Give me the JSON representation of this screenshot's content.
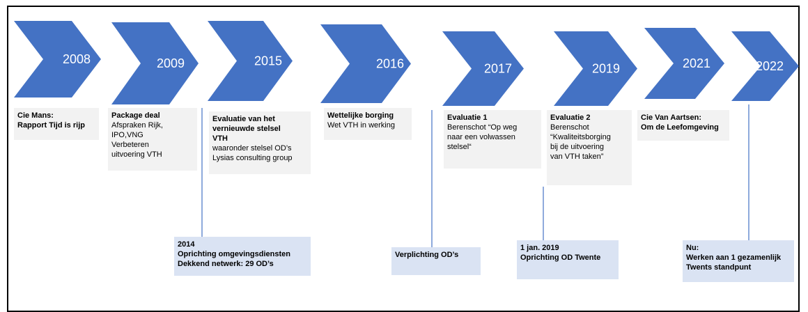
{
  "milestones": [
    "2008",
    "2009",
    "2015",
    "2016",
    "2017",
    "2019",
    "2021",
    "2022"
  ],
  "top_notes": [
    {
      "heading": [
        "Cie Mans:",
        "Rapport Tijd is rijp"
      ],
      "body": []
    },
    {
      "heading": [
        "Package deal"
      ],
      "body": [
        "Afspraken Rijk,",
        "IPO,VNG",
        "Verbeteren",
        "uitvoering VTH"
      ]
    },
    {
      "heading": [
        "Evaluatie van het",
        "vernieuwde stelsel",
        "VTH"
      ],
      "body": [
        "waaronder stelsel OD’s",
        "Lysias consulting group"
      ]
    },
    {
      "heading": [
        "Wettelijke borging"
      ],
      "body": [
        "Wet VTH in werking"
      ]
    },
    {
      "heading": [
        "Evaluatie 1"
      ],
      "body": [
        "Berenschot “Op weg",
        "naar een volwassen",
        "stelsel“"
      ]
    },
    {
      "heading": [
        "Evaluatie 2"
      ],
      "body": [
        "Berenschot",
        "“Kwaliteitsborging",
        "bij de uitvoering",
        "van VTH taken”"
      ]
    },
    {
      "heading": [
        "Cie Van Aartsen:",
        "Om de Leefomgeving"
      ],
      "body": []
    }
  ],
  "bottom_notes": [
    {
      "heading": [
        "2014",
        "Oprichting omgevingsdiensten",
        "Dekkend netwerk: 29 OD’s"
      ],
      "body": []
    },
    {
      "heading": [
        "Verplichting OD’s"
      ],
      "body": []
    },
    {
      "heading": [
        "1 jan. 2019",
        "Oprichting OD Twente"
      ],
      "body": []
    },
    {
      "heading": [
        "Nu:",
        "Werken aan 1 gezamenlijk",
        "Twents standpunt"
      ],
      "body": []
    }
  ]
}
